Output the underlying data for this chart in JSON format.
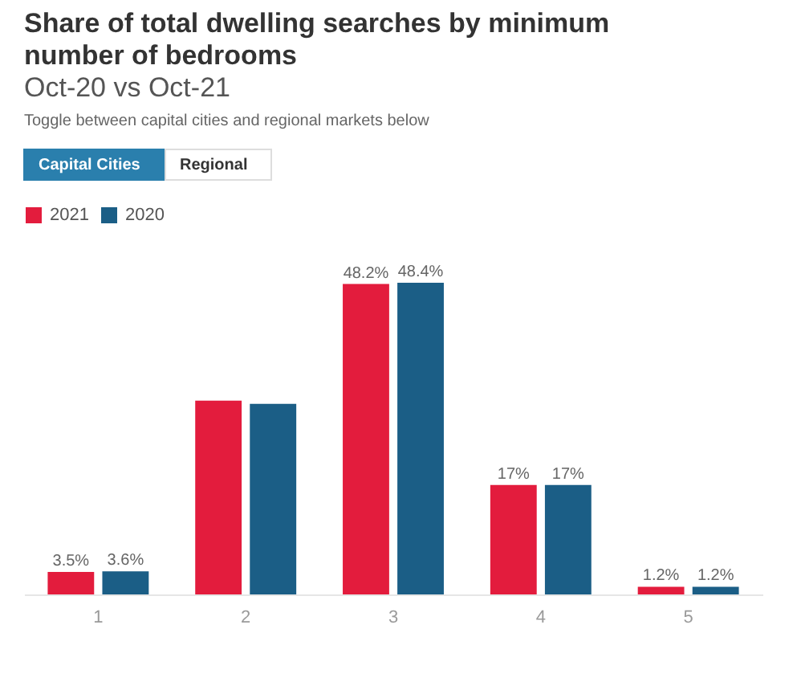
{
  "chart_data": {
    "type": "bar",
    "title": "Share of total dwelling searches by minimum number of bedrooms",
    "subtitle": "Oct-20 vs Oct-21",
    "annotations": [
      "Toggle between capital cities and regional markets below",
      "Capital Cities",
      "Regional"
    ],
    "categories": [
      "1",
      "2",
      "3",
      "4",
      "5"
    ],
    "series": [
      {
        "name": "2021",
        "color": "#e31c3d",
        "values": [
          3.5,
          30.1,
          48.2,
          17,
          1.2
        ],
        "value_labels": [
          "3.5%",
          null,
          "48.2%",
          "17%",
          "1.2%"
        ]
      },
      {
        "name": "2020",
        "color": "#1b5e86",
        "values": [
          3.6,
          29.6,
          48.4,
          17,
          1.2
        ],
        "value_labels": [
          "3.6%",
          null,
          "48.4%",
          "17%",
          "1.2%"
        ]
      }
    ],
    "legend": "top left",
    "grid": false
  }
}
